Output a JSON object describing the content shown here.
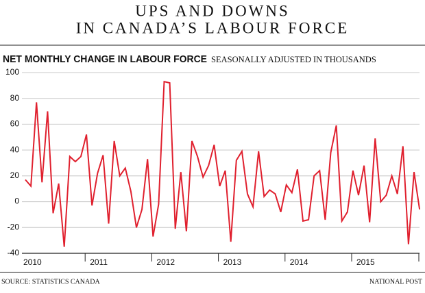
{
  "chart_data": {
    "type": "line",
    "title": [
      "UPS AND DOWNS",
      "IN CANADA’S LABOUR FORCE"
    ],
    "subtitle": "NET MONTHLY CHANGE IN LABOUR FORCE",
    "subtitle_note": "SEASONALLY ADJUSTED IN THOUSANDS",
    "source": "SOURCE: STATISTICS CANADA",
    "credit": "NATIONAL POST",
    "categories": [
      "2010",
      null,
      null,
      null,
      null,
      null,
      null,
      null,
      null,
      null,
      null,
      null,
      "2011",
      null,
      null,
      null,
      null,
      null,
      null,
      null,
      null,
      null,
      null,
      null,
      "2012",
      null,
      null,
      null,
      null,
      null,
      null,
      null,
      null,
      null,
      null,
      null,
      "2013",
      null,
      null,
      null,
      null,
      null,
      null,
      null,
      null,
      null,
      null,
      null,
      "2014",
      null,
      null,
      null,
      null,
      null,
      null,
      null,
      null,
      null,
      null,
      null,
      "2015",
      null,
      null,
      null,
      null,
      null,
      null,
      null,
      null,
      null,
      null,
      null
    ],
    "series": [
      {
        "name": "Net monthly change",
        "color": "#e0202e",
        "values": [
          17,
          12,
          77,
          15,
          70,
          -9,
          14,
          -35,
          35,
          31,
          35,
          52,
          -3,
          22,
          36,
          -17,
          47,
          20,
          26,
          8,
          -20,
          -6,
          33,
          -27,
          -2,
          93,
          92,
          -21,
          23,
          -23,
          47,
          35,
          19,
          28,
          44,
          12,
          24,
          -31,
          32,
          39,
          6,
          -4,
          39,
          4,
          9,
          6,
          -8,
          13,
          7,
          25,
          -15,
          -14,
          20,
          24,
          -14,
          38,
          59,
          -15,
          -8,
          24,
          5,
          28,
          -16,
          49,
          0,
          5,
          20,
          6,
          43,
          -33,
          23,
          -6
        ]
      }
    ],
    "ylim": [
      -40,
      100
    ],
    "yticks": [
      -40,
      -20,
      0,
      20,
      40,
      60,
      80,
      100
    ],
    "grid": true
  }
}
